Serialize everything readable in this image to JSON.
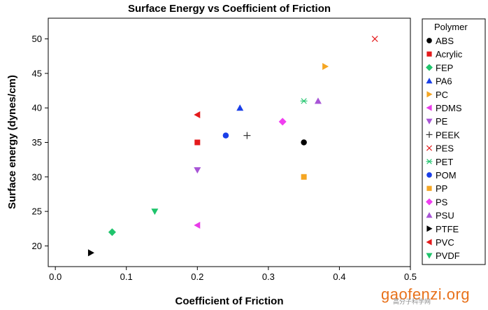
{
  "chart_data": {
    "type": "scatter",
    "title": "Surface Energy vs Coefficient of Friction",
    "xlabel": "Coefficient of Friction",
    "ylabel": "Surface energy (dynes/cm)",
    "xlim": [
      -0.01,
      0.5
    ],
    "ylim": [
      17,
      53
    ],
    "xticks": [
      "0.0",
      "0.1",
      "0.2",
      "0.3",
      "0.4",
      "0.5"
    ],
    "xtick_values": [
      0,
      0.1,
      0.2,
      0.3,
      0.4,
      0.5
    ],
    "yticks": [
      "20",
      "25",
      "30",
      "35",
      "40",
      "45",
      "50"
    ],
    "ytick_values": [
      20,
      25,
      30,
      35,
      40,
      45,
      50
    ],
    "grid": false,
    "legend_title": "Polymer",
    "legend_position": "right",
    "series": [
      {
        "name": "ABS",
        "marker": "circle",
        "color": "#000000",
        "x": 0.35,
        "y": 35
      },
      {
        "name": "Acrylic",
        "marker": "square",
        "color": "#e41a1c",
        "x": 0.2,
        "y": 35
      },
      {
        "name": "FEP",
        "marker": "diamond",
        "color": "#1fc46c",
        "x": 0.08,
        "y": 22
      },
      {
        "name": "PA6",
        "marker": "triangle-up",
        "color": "#1a3fe8",
        "x": 0.26,
        "y": 40
      },
      {
        "name": "PC",
        "marker": "triangle-right",
        "color": "#f5a623",
        "x": 0.38,
        "y": 46
      },
      {
        "name": "PDMS",
        "marker": "triangle-left",
        "color": "#e83be8",
        "x": 0.2,
        "y": 23
      },
      {
        "name": "PE",
        "marker": "triangle-down",
        "color": "#a855d6",
        "x": 0.2,
        "y": 31
      },
      {
        "name": "PEEK",
        "marker": "plus",
        "color": "#333333",
        "x": 0.27,
        "y": 36
      },
      {
        "name": "PES",
        "marker": "cross",
        "color": "#e41a1c",
        "x": 0.45,
        "y": 50
      },
      {
        "name": "PET",
        "marker": "asterisk",
        "color": "#1fc46c",
        "x": 0.35,
        "y": 41
      },
      {
        "name": "POM",
        "marker": "circle",
        "color": "#1a3fe8",
        "x": 0.24,
        "y": 36
      },
      {
        "name": "PP",
        "marker": "square",
        "color": "#f5a623",
        "x": 0.35,
        "y": 30
      },
      {
        "name": "PS",
        "marker": "diamond",
        "color": "#f03ef0",
        "x": 0.32,
        "y": 38
      },
      {
        "name": "PSU",
        "marker": "triangle-up",
        "color": "#a855d6",
        "x": 0.37,
        "y": 41
      },
      {
        "name": "PTFE",
        "marker": "triangle-right",
        "color": "#000000",
        "x": 0.05,
        "y": 19
      },
      {
        "name": "PVC",
        "marker": "triangle-left",
        "color": "#e41a1c",
        "x": 0.2,
        "y": 39
      },
      {
        "name": "PVDF",
        "marker": "triangle-down",
        "color": "#1fc46c",
        "x": 0.14,
        "y": 25
      }
    ]
  },
  "watermark": {
    "text": "gaofenzi.org",
    "subtext": "高分子科学网"
  }
}
